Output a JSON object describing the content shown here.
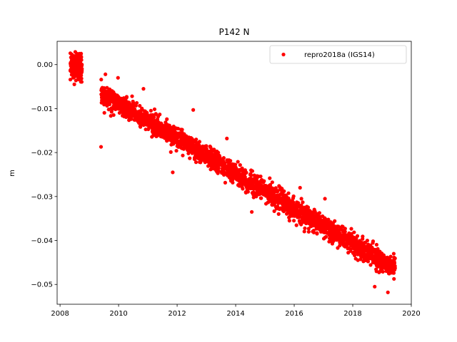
{
  "chart_data": {
    "type": "scatter",
    "title": "P142 N",
    "xlabel": "",
    "ylabel": "m",
    "xlim": [
      2007.9,
      2020.0
    ],
    "ylim": [
      -0.0545,
      0.0053
    ],
    "xticks": [
      2008,
      2010,
      2012,
      2014,
      2016,
      2018,
      2020
    ],
    "xtick_labels": [
      "2008",
      "2010",
      "2012",
      "2014",
      "2016",
      "2018",
      "2020"
    ],
    "yticks": [
      0.0,
      -0.01,
      -0.02,
      -0.03,
      -0.04,
      -0.05
    ],
    "ytick_labels": [
      "0.00",
      "−0.01",
      "−0.02",
      "−0.03",
      "−0.04",
      "−0.05"
    ],
    "grid": false,
    "legend": {
      "position": "top-right"
    },
    "series": [
      {
        "name": "repro2018a (IGS14)",
        "color": "#ff0000",
        "marker": "circle",
        "segments": [
          {
            "x_start": 2008.35,
            "x_end": 2008.75,
            "y_start": -0.0008,
            "y_end": -0.0003,
            "noise": 0.0016,
            "count": 150
          },
          {
            "x_start": 2009.4,
            "x_end": 2019.45,
            "y_start": -0.0065,
            "y_end": -0.0465,
            "noise": 0.00115,
            "count": 2600
          }
        ],
        "points": [
          {
            "x": 2009.4,
            "y": -0.0187
          },
          {
            "x": 2008.72,
            "y": 0.0025
          },
          {
            "x": 2008.62,
            "y": 0.0022
          },
          {
            "x": 2009.55,
            "y": -0.0022
          },
          {
            "x": 2009.98,
            "y": -0.003
          },
          {
            "x": 2010.85,
            "y": -0.0055
          },
          {
            "x": 2012.55,
            "y": -0.0103
          },
          {
            "x": 2013.7,
            "y": -0.0168
          },
          {
            "x": 2016.2,
            "y": -0.028
          },
          {
            "x": 2017.05,
            "y": -0.0305
          },
          {
            "x": 2019.4,
            "y": -0.043
          },
          {
            "x": 2019.2,
            "y": -0.0518
          },
          {
            "x": 2018.75,
            "y": -0.0505
          },
          {
            "x": 2011.85,
            "y": -0.0245
          },
          {
            "x": 2014.55,
            "y": -0.0335
          }
        ]
      }
    ]
  }
}
